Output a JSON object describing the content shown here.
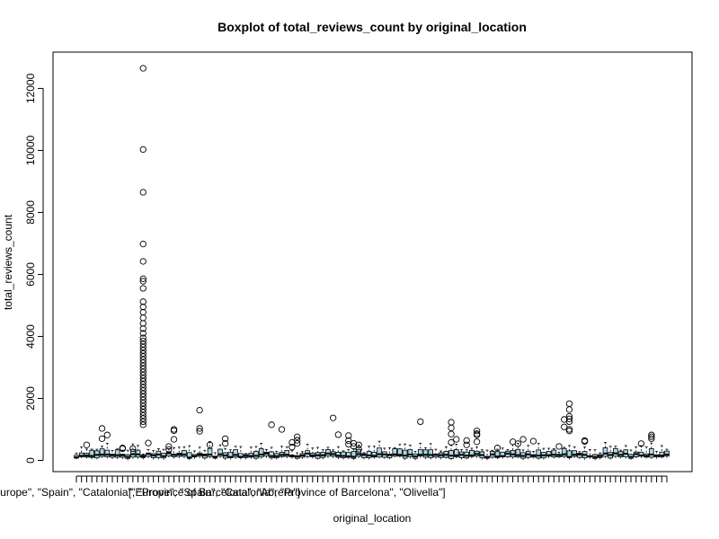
{
  "chart_data": {
    "type": "boxplot",
    "title": "Boxplot of total_reviews_count by original_location",
    "xlabel": "original_location",
    "ylabel": "total_reviews_count",
    "ylim": [
      -500,
      13000
    ],
    "yticks": [
      0,
      2000,
      4000,
      6000,
      8000,
      10000,
      12000
    ],
    "grid": false,
    "legend": "none",
    "box_fill": "#add8e6",
    "category_count": 116,
    "visible_category_labels": [
      {
        "index": 13,
        "label": "[\"Europe\", \"Spain\", \"Catalonia\", \"Province of Barcelona\", \"Abrera\"]"
      },
      {
        "index": 41,
        "label": "[\"Europe\", \"Spain\", \"Catalonia\", \"Province of Barcelona\", \"Olivella\"]"
      }
    ],
    "outliers": [
      {
        "category": 2,
        "values": [
          500
        ]
      },
      {
        "category": 5,
        "values": [
          1030,
          700
        ]
      },
      {
        "category": 6,
        "values": [
          820
        ]
      },
      {
        "category": 9,
        "values": [
          400,
          380
        ]
      },
      {
        "category": 11,
        "values": [
          380
        ]
      },
      {
        "category": 13,
        "values": [
          12650,
          10030,
          8650,
          6980,
          6420,
          5860,
          5780,
          5550,
          5120,
          4950,
          4780,
          4600,
          4420,
          4250,
          4100,
          3950,
          3850,
          3750,
          3650,
          3550,
          3450,
          3350,
          3250,
          3150,
          3050,
          2950,
          2850,
          2750,
          2650,
          2550,
          2450,
          2350,
          2250,
          2150,
          2050,
          1950,
          1850,
          1750,
          1650,
          1550,
          1450,
          1350,
          1250,
          1150
        ]
      },
      {
        "category": 14,
        "values": [
          560
        ]
      },
      {
        "category": 18,
        "values": [
          450,
          350
        ]
      },
      {
        "category": 19,
        "values": [
          1000,
          960,
          680
        ]
      },
      {
        "category": 24,
        "values": [
          1620,
          1030,
          940
        ]
      },
      {
        "category": 26,
        "values": [
          500
        ]
      },
      {
        "category": 29,
        "values": [
          700,
          550
        ]
      },
      {
        "category": 38,
        "values": [
          1150
        ]
      },
      {
        "category": 40,
        "values": [
          1000
        ]
      },
      {
        "category": 42,
        "values": [
          580,
          430
        ]
      },
      {
        "category": 43,
        "values": [
          760,
          650,
          550
        ]
      },
      {
        "category": 50,
        "values": [
          1370
        ]
      },
      {
        "category": 51,
        "values": [
          830
        ]
      },
      {
        "category": 53,
        "values": [
          800,
          640,
          520
        ]
      },
      {
        "category": 54,
        "values": [
          550,
          450
        ]
      },
      {
        "category": 55,
        "values": [
          500,
          360
        ]
      },
      {
        "category": 67,
        "values": [
          1250
        ]
      },
      {
        "category": 73,
        "values": [
          1230,
          1050,
          850,
          580
        ]
      },
      {
        "category": 74,
        "values": [
          680
        ]
      },
      {
        "category": 76,
        "values": [
          640,
          500
        ]
      },
      {
        "category": 78,
        "values": [
          950,
          860,
          820,
          600
        ]
      },
      {
        "category": 82,
        "values": [
          400
        ]
      },
      {
        "category": 85,
        "values": [
          600
        ]
      },
      {
        "category": 86,
        "values": [
          540
        ]
      },
      {
        "category": 87,
        "values": [
          680
        ]
      },
      {
        "category": 89,
        "values": [
          620
        ]
      },
      {
        "category": 94,
        "values": [
          450
        ]
      },
      {
        "category": 95,
        "values": [
          1320,
          1080
        ]
      },
      {
        "category": 96,
        "values": [
          1830,
          1640,
          1420,
          1340,
          1250,
          1000,
          950
        ]
      },
      {
        "category": 99,
        "values": [
          640,
          610
        ]
      },
      {
        "category": 110,
        "values": [
          540
        ]
      },
      {
        "category": 112,
        "values": [
          820,
          760,
          700
        ]
      }
    ],
    "boxes_note": "Most boxes sit between 0 and ~600 with medians near 100–300; whiskers up to ~700."
  }
}
